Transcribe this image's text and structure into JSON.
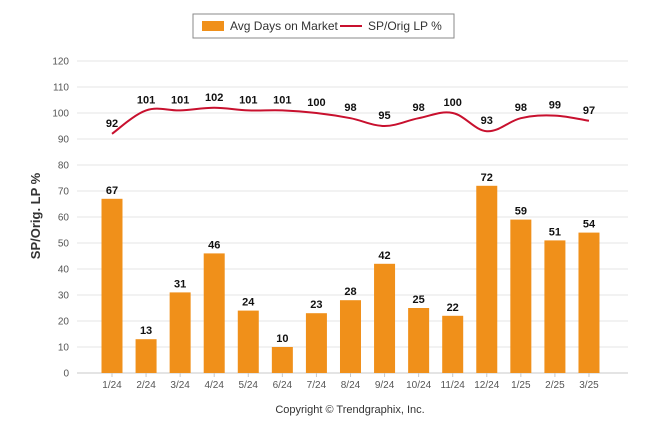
{
  "legend": {
    "bar_label": "Avg Days on Market",
    "line_label": "SP/Orig LP %"
  },
  "copyright": "Copyright © Trendgraphix, Inc.",
  "colors": {
    "bar": "#f0901a",
    "line": "#c8102e",
    "grid": "#e6e6e6"
  },
  "chart_data": {
    "type": "bar",
    "ylabel": "SP/Orig. LP %",
    "ylim": [
      0,
      120
    ],
    "yticks": [
      0,
      10,
      20,
      30,
      40,
      50,
      60,
      70,
      80,
      90,
      100,
      110,
      120
    ],
    "grid": true,
    "legend_position": "top-center",
    "categories": [
      "1/24",
      "2/24",
      "3/24",
      "4/24",
      "5/24",
      "6/24",
      "7/24",
      "8/24",
      "9/24",
      "10/24",
      "11/24",
      "12/24",
      "1/25",
      "2/25",
      "3/25"
    ],
    "series": [
      {
        "name": "Avg Days on Market",
        "type": "bar",
        "values": [
          67,
          13,
          31,
          46,
          24,
          10,
          23,
          28,
          42,
          25,
          22,
          72,
          59,
          51,
          54
        ]
      },
      {
        "name": "SP/Orig LP %",
        "type": "line",
        "values": [
          92,
          101,
          101,
          102,
          101,
          101,
          100,
          98,
          95,
          98,
          100,
          93,
          98,
          99,
          97
        ]
      }
    ]
  }
}
